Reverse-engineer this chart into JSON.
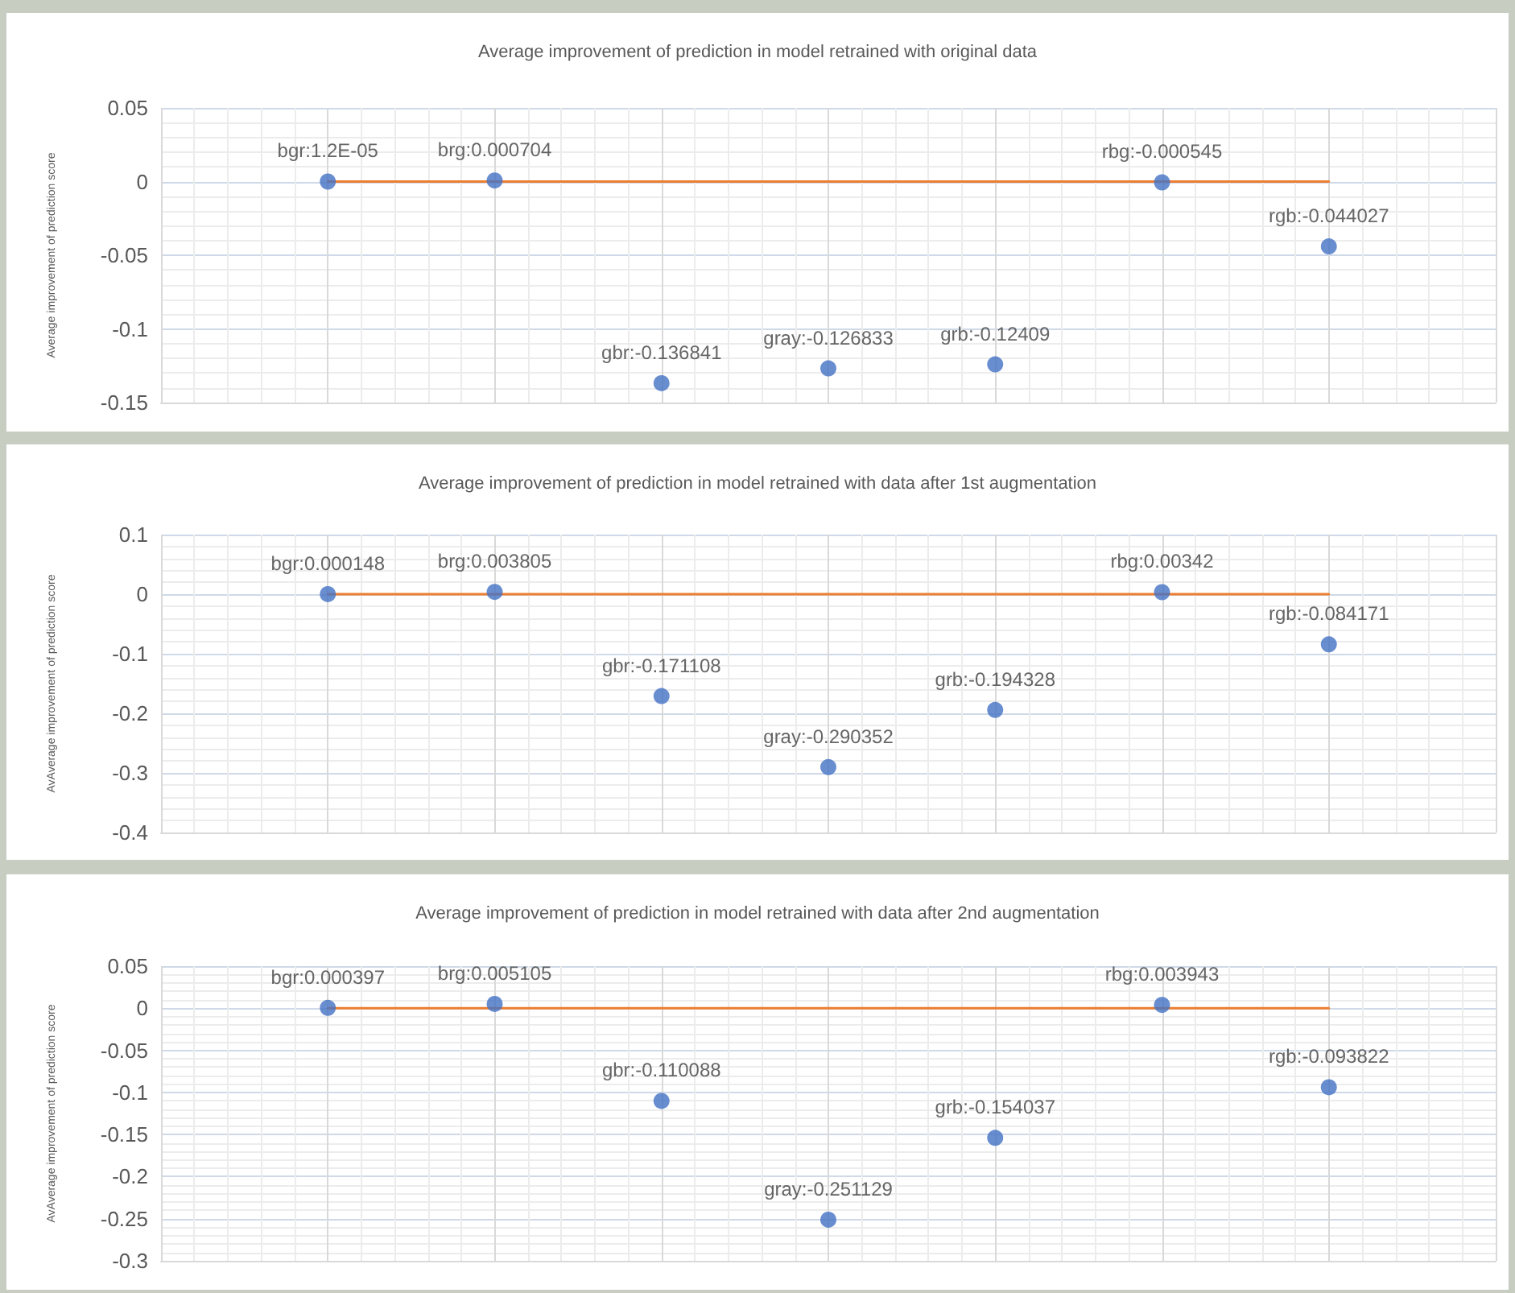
{
  "chart_data": [
    {
      "type": "scatter",
      "title": "Average improvement of prediction in model retrained with original data",
      "ylabel": "Average improvement of prediction score",
      "marker": "circle",
      "grid": true,
      "tick_labels": "y",
      "categories": [
        null,
        null,
        null,
        null,
        null,
        null,
        null,
        null,
        null
      ],
      "ylim": [
        -0.15,
        0.05
      ],
      "yticks": [
        -0.15,
        -0.1,
        -0.05,
        0,
        0.05
      ],
      "series": [
        {
          "color": "#4472c4",
          "values": [
            null,
            1.2e-05,
            0.000704,
            -0.136841,
            -0.126833,
            -0.12409,
            -0.000545,
            -0.044027,
            null
          ],
          "value_labels": [
            null,
            "bgr:1.2E-05",
            "brg:0.000704",
            "gbr:-0.136841",
            "gray:-0.126833",
            "grb:-0.12409",
            "rbg:-0.000545",
            "rgb:-0.044027",
            null
          ]
        },
        {
          "type": "line",
          "color": "#ed7d31",
          "marker": "none",
          "values": [
            null,
            0,
            0,
            0,
            0,
            0,
            0,
            0,
            null
          ]
        }
      ]
    },
    {
      "type": "scatter",
      "title": "Average improvement of prediction in model retrained with data after 1st augmentation",
      "ylabel": "AvAverage improvement of prediction score",
      "marker": "circle",
      "grid": true,
      "tick_labels": "y",
      "categories": [
        null,
        null,
        null,
        null,
        null,
        null,
        null,
        null,
        null
      ],
      "ylim": [
        -0.4,
        0.1
      ],
      "yticks": [
        -0.4,
        -0.3,
        -0.2,
        -0.1,
        0,
        0.1
      ],
      "series": [
        {
          "color": "#4472c4",
          "values": [
            null,
            0.000148,
            0.003805,
            -0.171108,
            -0.290352,
            -0.194328,
            0.00342,
            -0.084171,
            null
          ],
          "value_labels": [
            null,
            "bgr:0.000148",
            "brg:0.003805",
            "gbr:-0.171108",
            "gray:-0.290352",
            "grb:-0.194328",
            "rbg:0.00342",
            "rgb:-0.084171",
            null
          ]
        },
        {
          "type": "line",
          "color": "#ed7d31",
          "marker": "none",
          "values": [
            null,
            0,
            0,
            0,
            0,
            0,
            0,
            0,
            null
          ]
        }
      ]
    },
    {
      "type": "scatter",
      "title": "Average improvement of prediction in model retrained with data after 2nd augmentation",
      "ylabel": "AvAverage improvement of prediction score",
      "marker": "circle",
      "grid": true,
      "tick_labels": "y",
      "categories": [
        null,
        null,
        null,
        null,
        null,
        null,
        null,
        null,
        null
      ],
      "ylim": [
        -0.3,
        0.05
      ],
      "yticks": [
        -0.3,
        -0.25,
        -0.2,
        -0.15,
        -0.1,
        -0.05,
        0,
        0.05
      ],
      "series": [
        {
          "color": "#4472c4",
          "values": [
            null,
            0.000397,
            0.005105,
            -0.110088,
            -0.251129,
            -0.154037,
            0.003943,
            -0.093822,
            null
          ],
          "value_labels": [
            null,
            "bgr:0.000397",
            "brg:0.005105",
            "gbr:-0.110088",
            "gray:-0.251129",
            "grb:-0.154037",
            "rbg:0.003943",
            "rgb:-0.093822",
            null
          ]
        },
        {
          "type": "line",
          "color": "#ed7d31",
          "marker": "none",
          "values": [
            null,
            0,
            0,
            0,
            0,
            0,
            0,
            0,
            null
          ]
        }
      ]
    }
  ]
}
